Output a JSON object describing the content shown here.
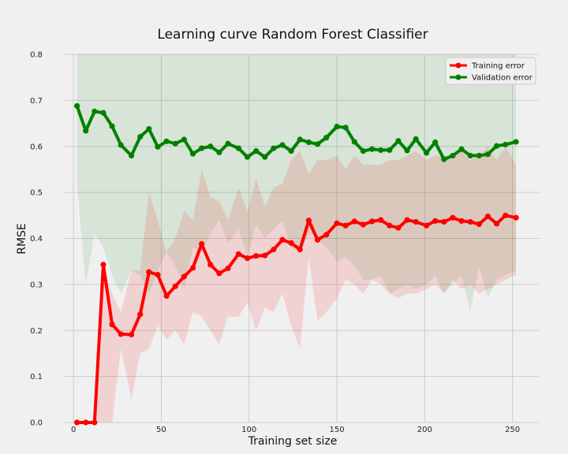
{
  "chart_data": {
    "type": "line",
    "title": "Learning curve Random Forest Classifier",
    "xlabel": "Training set size",
    "ylabel": "RMSE",
    "xlim": [
      -5,
      265
    ],
    "ylim": [
      0,
      0.8
    ],
    "xticks": [
      0,
      50,
      100,
      150,
      200,
      250
    ],
    "yticks": [
      0.0,
      0.1,
      0.2,
      0.3,
      0.4,
      0.5,
      0.6,
      0.7,
      0.8
    ],
    "grid": true,
    "legend_position": "top-right",
    "series": [
      {
        "name": "Training error",
        "color": "#ff0000",
        "x": [
          2,
          7,
          12,
          17,
          22,
          27,
          33,
          38,
          43,
          48,
          53,
          58,
          63,
          68,
          73,
          78,
          83,
          88,
          94,
          99,
          104,
          109,
          114,
          119,
          124,
          129,
          134,
          139,
          144,
          150,
          155,
          160,
          165,
          170,
          175,
          180,
          185,
          190,
          195,
          201,
          206,
          211,
          216,
          221,
          226,
          231,
          236,
          241,
          246,
          252
        ],
        "values": [
          0.0,
          0.0,
          0.0,
          0.343,
          0.213,
          0.192,
          0.191,
          0.235,
          0.327,
          0.321,
          0.275,
          0.296,
          0.317,
          0.336,
          0.388,
          0.343,
          0.324,
          0.335,
          0.366,
          0.357,
          0.362,
          0.363,
          0.376,
          0.397,
          0.39,
          0.376,
          0.439,
          0.397,
          0.408,
          0.433,
          0.428,
          0.437,
          0.43,
          0.437,
          0.44,
          0.428,
          0.423,
          0.44,
          0.436,
          0.428,
          0.438,
          0.436,
          0.445,
          0.438,
          0.436,
          0.431,
          0.448,
          0.432,
          0.45,
          0.445
        ],
        "band_lower": [
          0.0,
          0.0,
          0.0,
          0.0,
          0.0,
          0.16,
          0.05,
          0.15,
          0.16,
          0.21,
          0.18,
          0.2,
          0.17,
          0.24,
          0.23,
          0.2,
          0.17,
          0.23,
          0.23,
          0.26,
          0.2,
          0.25,
          0.24,
          0.28,
          0.21,
          0.16,
          0.36,
          0.22,
          0.24,
          0.27,
          0.31,
          0.3,
          0.28,
          0.31,
          0.3,
          0.28,
          0.27,
          0.28,
          0.28,
          0.29,
          0.3,
          0.28,
          0.31,
          0.29,
          0.3,
          0.28,
          0.29,
          0.3,
          0.31,
          0.32
        ],
        "band_upper": [
          0.0,
          0.0,
          0.0,
          0.34,
          0.28,
          0.24,
          0.33,
          0.33,
          0.5,
          0.44,
          0.37,
          0.4,
          0.46,
          0.44,
          0.55,
          0.49,
          0.48,
          0.44,
          0.51,
          0.46,
          0.53,
          0.47,
          0.51,
          0.52,
          0.57,
          0.59,
          0.54,
          0.57,
          0.57,
          0.58,
          0.55,
          0.58,
          0.56,
          0.56,
          0.56,
          0.57,
          0.57,
          0.58,
          0.59,
          0.57,
          0.58,
          0.58,
          0.58,
          0.59,
          0.57,
          0.58,
          0.6,
          0.57,
          0.6,
          0.56
        ]
      },
      {
        "name": "Validation error",
        "color": "#008000",
        "x": [
          2,
          7,
          12,
          17,
          22,
          27,
          33,
          38,
          43,
          48,
          53,
          58,
          63,
          68,
          73,
          78,
          83,
          88,
          94,
          99,
          104,
          109,
          114,
          119,
          124,
          129,
          134,
          139,
          144,
          150,
          155,
          160,
          165,
          170,
          175,
          180,
          185,
          190,
          195,
          201,
          206,
          211,
          216,
          221,
          226,
          231,
          236,
          241,
          246,
          252
        ],
        "values": [
          0.688,
          0.634,
          0.676,
          0.673,
          0.644,
          0.603,
          0.58,
          0.621,
          0.638,
          0.599,
          0.611,
          0.606,
          0.615,
          0.584,
          0.596,
          0.6,
          0.587,
          0.606,
          0.596,
          0.577,
          0.59,
          0.577,
          0.596,
          0.603,
          0.59,
          0.615,
          0.609,
          0.605,
          0.619,
          0.643,
          0.641,
          0.61,
          0.59,
          0.594,
          0.592,
          0.592,
          0.612,
          0.591,
          0.616,
          0.586,
          0.609,
          0.572,
          0.58,
          0.594,
          0.58,
          0.58,
          0.583,
          0.601,
          0.604,
          0.61
        ],
        "band_lower": [
          0.52,
          0.3,
          0.41,
          0.38,
          0.32,
          0.28,
          0.33,
          0.32,
          0.28,
          0.33,
          0.37,
          0.34,
          0.29,
          0.38,
          0.37,
          0.41,
          0.44,
          0.39,
          0.42,
          0.36,
          0.43,
          0.4,
          0.42,
          0.44,
          0.38,
          0.37,
          0.41,
          0.4,
          0.38,
          0.35,
          0.36,
          0.34,
          0.31,
          0.31,
          0.32,
          0.28,
          0.29,
          0.3,
          0.29,
          0.3,
          0.32,
          0.28,
          0.3,
          0.32,
          0.24,
          0.34,
          0.27,
          0.31,
          0.32,
          0.33
        ],
        "band_upper": [
          0.8,
          0.8,
          0.8,
          0.8,
          0.8,
          0.8,
          0.8,
          0.8,
          0.8,
          0.8,
          0.8,
          0.8,
          0.8,
          0.8,
          0.8,
          0.8,
          0.8,
          0.8,
          0.8,
          0.8,
          0.8,
          0.8,
          0.8,
          0.8,
          0.8,
          0.8,
          0.8,
          0.8,
          0.8,
          0.8,
          0.8,
          0.8,
          0.8,
          0.8,
          0.8,
          0.8,
          0.8,
          0.8,
          0.8,
          0.8,
          0.8,
          0.8,
          0.8,
          0.8,
          0.8,
          0.8,
          0.8,
          0.8,
          0.8,
          0.8
        ]
      }
    ]
  }
}
